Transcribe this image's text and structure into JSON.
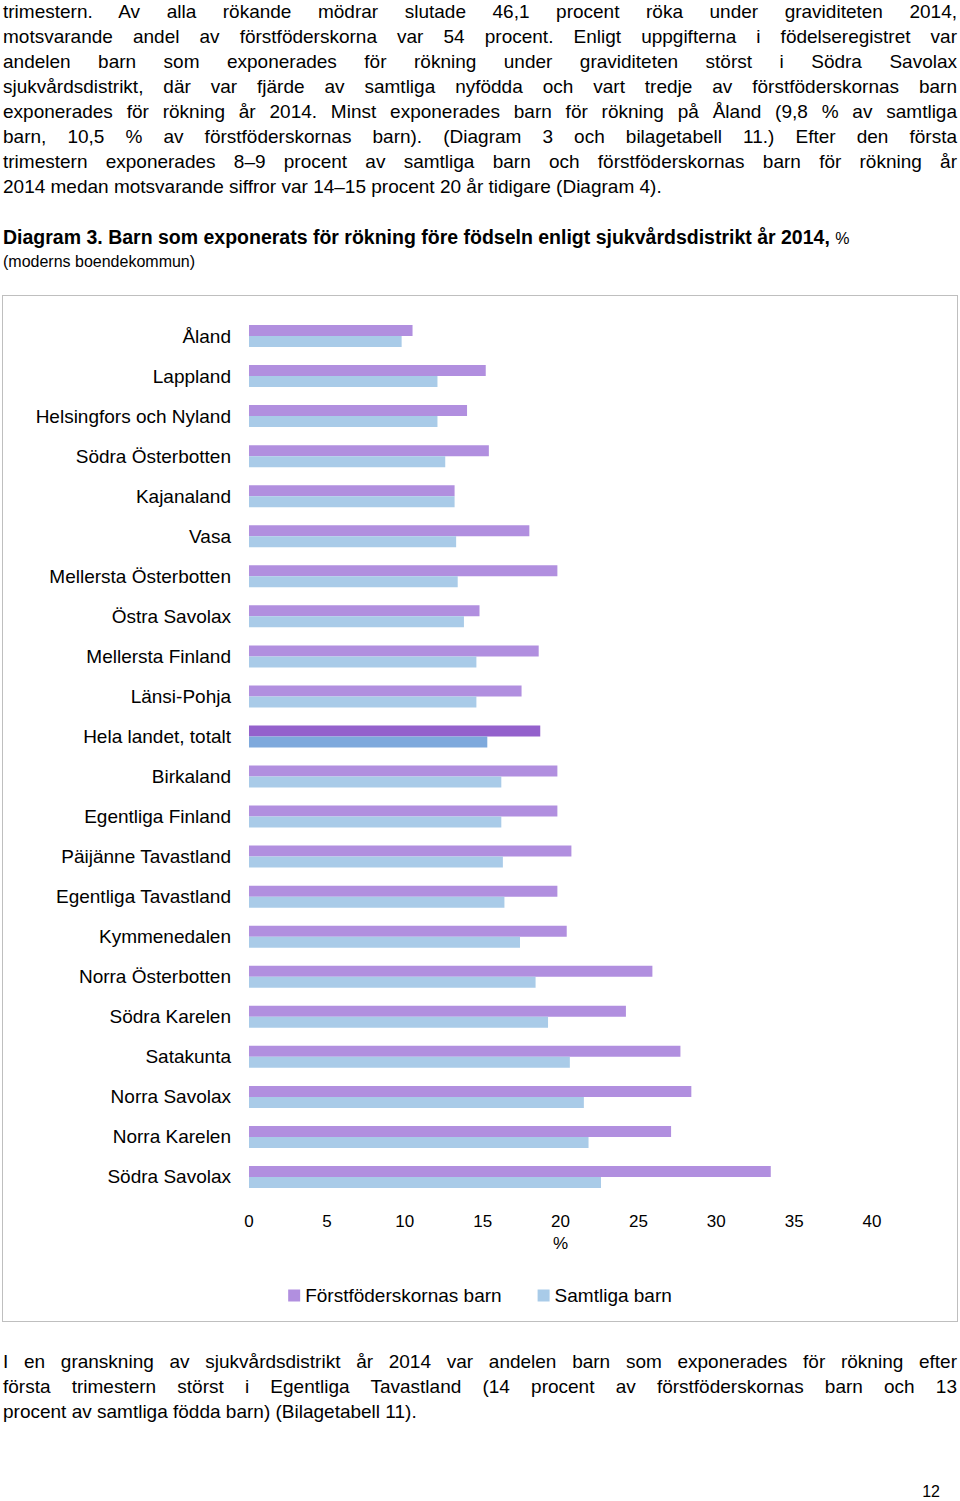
{
  "document": {
    "paragraph_top": [
      "trimestern. Av alla rökande mödrar slutade 46,1 procent röka under graviditeten 2014,",
      "motsvarande andel av förstföderskorna var 54 procent. Enligt uppgifterna i födelseregistret var",
      "andelen barn som exponerades för rökning under graviditeten störst i Södra Savolax",
      "sjukvårdsdistrikt, där var fjärde av samtliga nyfödda och vart tredje av förstföderskornas barn",
      "exponerades för rökning år 2014. Minst exponerades barn för rökning på Åland (9,8 % av samtliga",
      "barn, 10,5 % av förstföderskornas barn). (Diagram 3 och bilagetabell 11.) Efter den första",
      "trimestern exponerades 8–9 procent av samtliga barn och förstföderskornas barn för rökning år",
      "2014 medan motsvarande siffror var 14–15 procent 20 år tidigare (Diagram 4)."
    ],
    "caption": {
      "label": "Diagram 3.",
      "title": "Barn som exponerats för rökning före födseln enligt sjukvårdsdistrikt år 2014,",
      "unit": "%",
      "subtitle": "(moderns boendekommun)"
    },
    "paragraph_bottom": [
      "I en granskning av sjukvårdsdistrikt år 2014 var andelen barn som exponerades för rökning efter",
      "första trimestern störst i Egentliga Tavastland (14 procent av förstföderskornas barn och 13",
      "procent av samtliga födda barn) (Bilagetabell 11)."
    ],
    "page_number": "12"
  },
  "chart_data": {
    "type": "bar",
    "orientation": "horizontal",
    "categories": [
      "Åland",
      "Lappland",
      "Helsingfors och Nyland",
      "Södra Österbotten",
      "Kajanaland",
      "Vasa",
      "Mellersta Österbotten",
      "Östra Savolax",
      "Mellersta Finland",
      "Länsi-Pohja",
      "Hela landet, totalt",
      "Birkaland",
      "Egentliga Finland",
      "Päijänne Tavastland",
      "Egentliga Tavastland",
      "Kymmenedalen",
      "Norra Österbotten",
      "Södra Karelen",
      "Satakunta",
      "Norra Savolax",
      "Norra Karelen",
      "Södra Savolax"
    ],
    "series": [
      {
        "name": "Förstföderskornas barn",
        "color": "#b18fdf",
        "colors": [
          "#b18fdf",
          "#b18fdf",
          "#b18fdf",
          "#b18fdf",
          "#b18fdf",
          "#b18fdf",
          "#b18fdf",
          "#b18fdf",
          "#b18fdf",
          "#b18fdf",
          "#9461cc",
          "#b18fdf",
          "#b18fdf",
          "#b18fdf",
          "#b18fdf",
          "#b18fdf",
          "#b18fdf",
          "#b18fdf",
          "#b18fdf",
          "#b18fdf",
          "#b18fdf",
          "#b18fdf"
        ],
        "values": [
          10.5,
          15.2,
          14.0,
          15.4,
          13.2,
          18.0,
          19.8,
          14.8,
          18.6,
          17.5,
          18.7,
          19.8,
          19.8,
          20.7,
          19.8,
          20.4,
          25.9,
          24.2,
          27.7,
          28.4,
          27.1,
          33.5
        ]
      },
      {
        "name": "Samtliga barn",
        "color": "#a9cbe8",
        "colors": [
          "#a9cbe8",
          "#a9cbe8",
          "#a9cbe8",
          "#a9cbe8",
          "#a9cbe8",
          "#a9cbe8",
          "#a9cbe8",
          "#a9cbe8",
          "#a9cbe8",
          "#a9cbe8",
          "#7ea9dc",
          "#a9cbe8",
          "#a9cbe8",
          "#a9cbe8",
          "#a9cbe8",
          "#a9cbe8",
          "#a9cbe8",
          "#a9cbe8",
          "#a9cbe8",
          "#a9cbe8",
          "#a9cbe8",
          "#a9cbe8"
        ],
        "values": [
          9.8,
          12.1,
          12.1,
          12.6,
          13.2,
          13.3,
          13.4,
          13.8,
          14.6,
          14.6,
          15.3,
          16.2,
          16.2,
          16.3,
          16.4,
          17.4,
          18.4,
          19.2,
          20.6,
          21.5,
          21.8,
          22.6
        ]
      }
    ],
    "xlabel": "%",
    "xlim": [
      0,
      40
    ],
    "xticks": [
      0,
      5,
      10,
      15,
      20,
      25,
      30,
      35,
      40
    ],
    "legend": "bottom",
    "grid": false
  }
}
